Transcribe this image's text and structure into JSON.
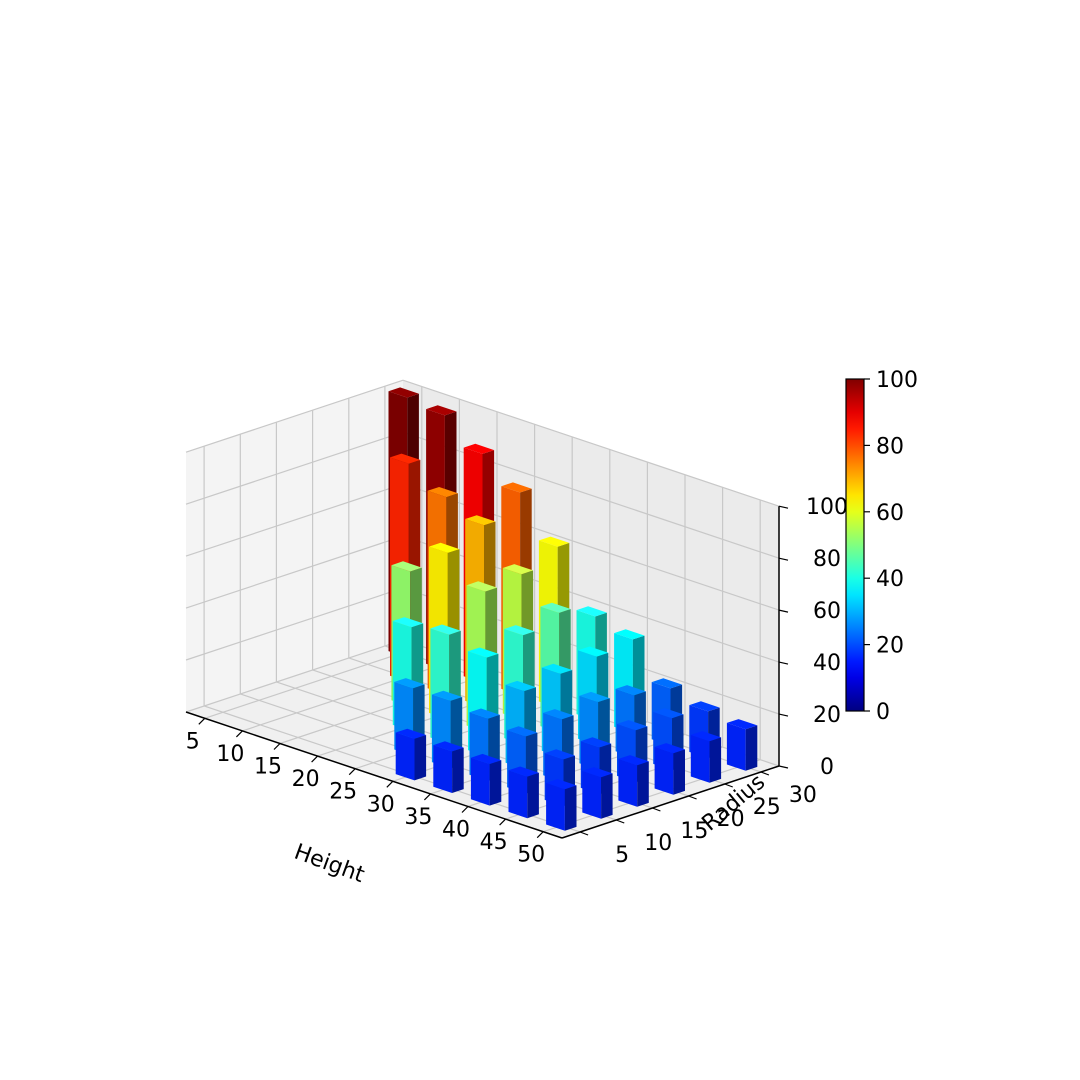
{
  "chart_data": {
    "type": "bar3d",
    "title": "",
    "xlabel": "Height",
    "ylabel": "Radius",
    "zlabel": "",
    "x_ticks": [
      5,
      10,
      15,
      20,
      25,
      30,
      35,
      40,
      45,
      50
    ],
    "y_ticks": [
      5,
      10,
      15,
      20,
      25,
      30
    ],
    "z_ticks": [
      0,
      20,
      40,
      60,
      80,
      100
    ],
    "xlim": [
      2.5,
      52.5
    ],
    "ylim": [
      2.5,
      32.5
    ],
    "zlim": [
      0,
      100
    ],
    "grid": true,
    "colormap": "jet",
    "colorbar": {
      "ticks": [
        0,
        20,
        40,
        60,
        80,
        100
      ],
      "range": [
        0,
        100
      ]
    },
    "bars": [
      {
        "x": 5,
        "y": 30,
        "z": 100
      },
      {
        "x": 10,
        "y": 30,
        "z": 98
      },
      {
        "x": 15,
        "y": 30,
        "z": 88
      },
      {
        "x": 20,
        "y": 30,
        "z": 78
      },
      {
        "x": 25,
        "y": 30,
        "z": 62
      },
      {
        "x": 30,
        "y": 30,
        "z": 40
      },
      {
        "x": 35,
        "y": 30,
        "z": 36
      },
      {
        "x": 40,
        "y": 30,
        "z": 22
      },
      {
        "x": 45,
        "y": 30,
        "z": 18
      },
      {
        "x": 50,
        "y": 30,
        "z": 16
      },
      {
        "x": 10,
        "y": 25,
        "z": 84
      },
      {
        "x": 15,
        "y": 25,
        "z": 76
      },
      {
        "x": 20,
        "y": 25,
        "z": 70
      },
      {
        "x": 25,
        "y": 25,
        "z": 56
      },
      {
        "x": 30,
        "y": 25,
        "z": 46
      },
      {
        "x": 35,
        "y": 25,
        "z": 34
      },
      {
        "x": 40,
        "y": 25,
        "z": 24
      },
      {
        "x": 45,
        "y": 25,
        "z": 20
      },
      {
        "x": 50,
        "y": 25,
        "z": 16
      },
      {
        "x": 15,
        "y": 20,
        "z": 52
      },
      {
        "x": 20,
        "y": 20,
        "z": 64
      },
      {
        "x": 25,
        "y": 20,
        "z": 54
      },
      {
        "x": 30,
        "y": 20,
        "z": 42
      },
      {
        "x": 35,
        "y": 20,
        "z": 32
      },
      {
        "x": 40,
        "y": 20,
        "z": 26
      },
      {
        "x": 45,
        "y": 20,
        "z": 20
      },
      {
        "x": 50,
        "y": 20,
        "z": 16
      },
      {
        "x": 20,
        "y": 15,
        "z": 40
      },
      {
        "x": 25,
        "y": 15,
        "z": 42
      },
      {
        "x": 30,
        "y": 15,
        "z": 38
      },
      {
        "x": 35,
        "y": 15,
        "z": 30
      },
      {
        "x": 40,
        "y": 15,
        "z": 24
      },
      {
        "x": 45,
        "y": 15,
        "z": 18
      },
      {
        "x": 50,
        "y": 15,
        "z": 16
      },
      {
        "x": 25,
        "y": 10,
        "z": 26
      },
      {
        "x": 30,
        "y": 10,
        "z": 26
      },
      {
        "x": 35,
        "y": 10,
        "z": 24
      },
      {
        "x": 40,
        "y": 10,
        "z": 22
      },
      {
        "x": 45,
        "y": 10,
        "z": 18
      },
      {
        "x": 50,
        "y": 10,
        "z": 16
      },
      {
        "x": 30,
        "y": 5,
        "z": 16
      },
      {
        "x": 35,
        "y": 5,
        "z": 16
      },
      {
        "x": 40,
        "y": 5,
        "z": 16
      },
      {
        "x": 45,
        "y": 5,
        "z": 16
      },
      {
        "x": 50,
        "y": 5,
        "z": 16
      }
    ]
  }
}
